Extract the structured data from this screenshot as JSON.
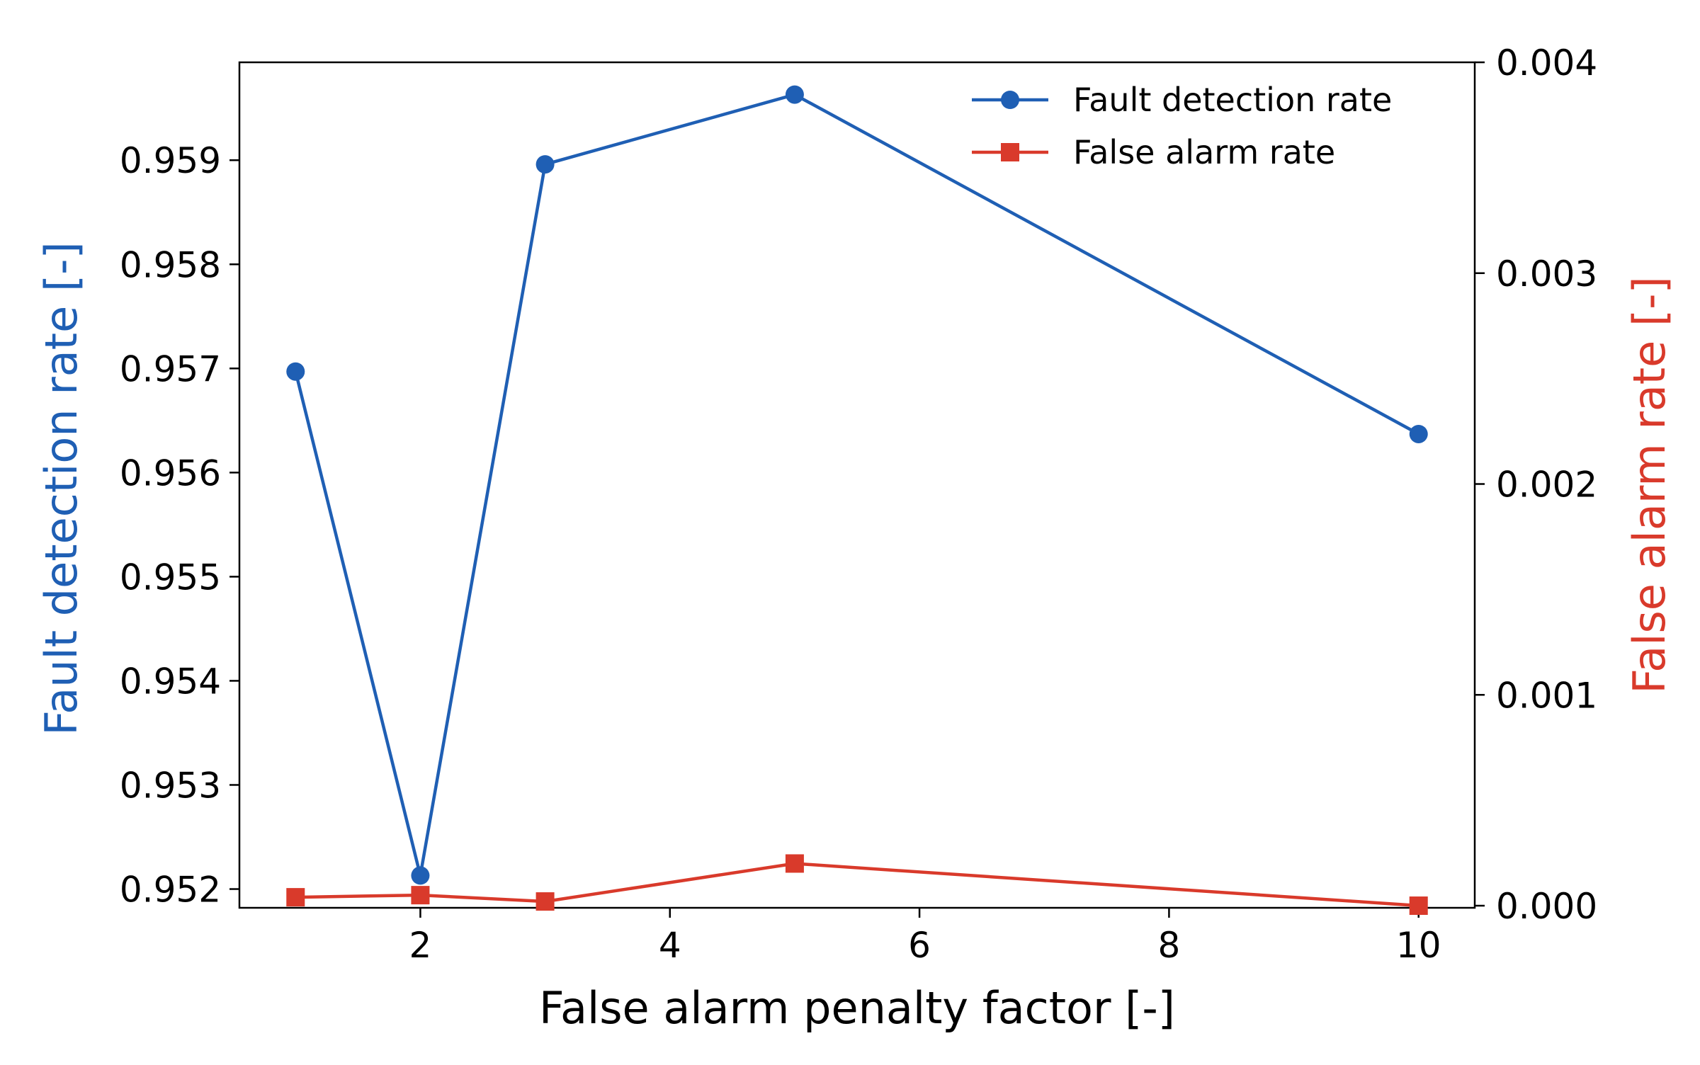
{
  "chart_data": {
    "type": "line",
    "title": "",
    "xlabel": "False alarm penalty factor [-]",
    "ylabel_left": "Fault detection rate [-]",
    "ylabel_right": "False alarm rate [-]",
    "x": [
      1,
      2,
      3,
      5,
      10
    ],
    "xlim": [
      0.55,
      10.45
    ],
    "x_ticks": [
      2,
      4,
      6,
      8,
      10
    ],
    "ylim_left": [
      0.95182,
      0.95994
    ],
    "y_ticks_left": [
      "0.952",
      "0.953",
      "0.954",
      "0.955",
      "0.956",
      "0.957",
      "0.958",
      "0.959"
    ],
    "ylim_right": [
      -1e-05,
      0.004
    ],
    "y_ticks_right": [
      "0.000",
      "0.001",
      "0.002",
      "0.003",
      "0.004"
    ],
    "grid": false,
    "legend_position": "top-right",
    "series": [
      {
        "name": "Fault detection rate",
        "axis": "left",
        "marker": "circle",
        "color": "#1f5fb4",
        "values": [
          0.95697,
          0.95213,
          0.95896,
          0.95963,
          0.95637
        ]
      },
      {
        "name": "False alarm rate",
        "axis": "right",
        "marker": "square",
        "color": "#d93a2b",
        "values": [
          4e-05,
          5e-05,
          2e-05,
          0.0002,
          0.0
        ]
      }
    ]
  }
}
